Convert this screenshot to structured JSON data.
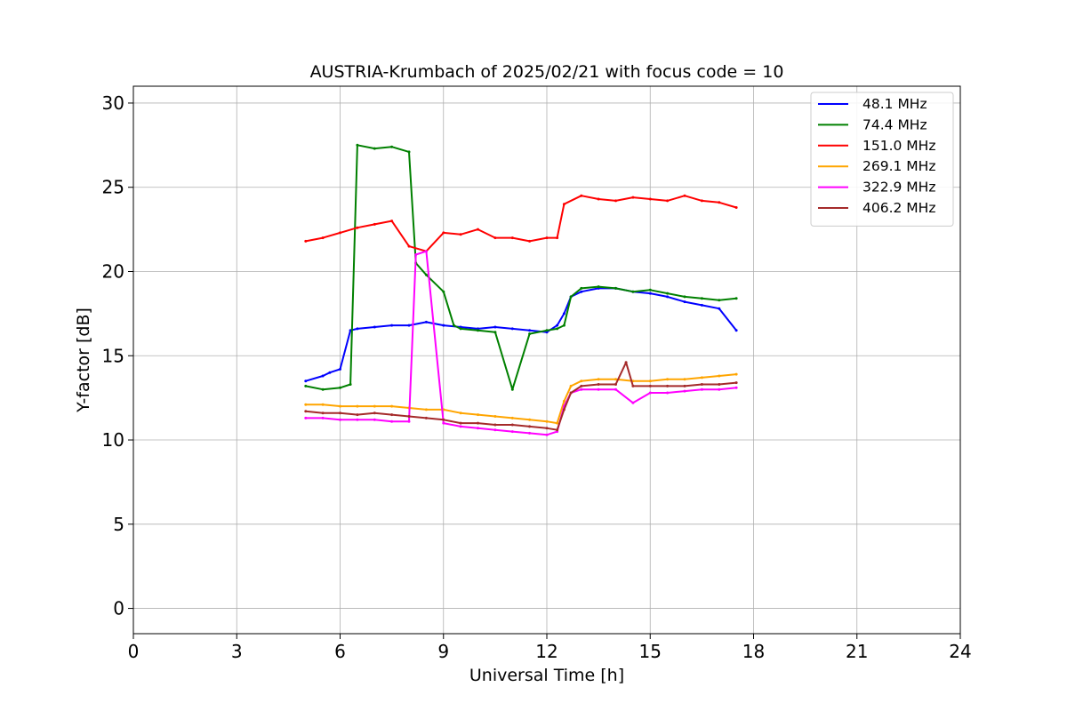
{
  "chart_data": {
    "type": "line",
    "title": "AUSTRIA-Krumbach of 2025/02/21 with focus code = 10",
    "xlabel": "Universal Time [h]",
    "ylabel": "Y-factor [dB]",
    "xlim": [
      0,
      24
    ],
    "ylim": [
      -1.5,
      31
    ],
    "xticks": [
      0,
      3,
      6,
      9,
      12,
      15,
      18,
      21,
      24
    ],
    "yticks": [
      0,
      5,
      10,
      15,
      20,
      25,
      30
    ],
    "grid": true,
    "legend_position": "upper-right",
    "series": [
      {
        "name": " 48.1 MHz",
        "color": "#0000ff",
        "x": [
          5.0,
          5.5,
          5.7,
          6.0,
          6.3,
          6.5,
          7.0,
          7.5,
          8.0,
          8.5,
          9.0,
          9.5,
          10.0,
          10.5,
          11.0,
          11.5,
          12.0,
          12.3,
          12.5,
          12.7,
          13.0,
          13.5,
          14.0,
          14.5,
          15.0,
          15.5,
          16.0,
          16.5,
          17.0,
          17.5
        ],
        "y": [
          13.5,
          13.8,
          14.0,
          14.2,
          16.5,
          16.6,
          16.7,
          16.8,
          16.8,
          17.0,
          16.8,
          16.7,
          16.6,
          16.7,
          16.6,
          16.5,
          16.4,
          16.8,
          17.5,
          18.5,
          18.8,
          19.0,
          19.0,
          18.8,
          18.7,
          18.5,
          18.2,
          18.0,
          17.8,
          16.5
        ]
      },
      {
        "name": " 74.4 MHz",
        "color": "#008000",
        "x": [
          5.0,
          5.5,
          6.0,
          6.3,
          6.5,
          7.0,
          7.5,
          8.0,
          8.2,
          8.5,
          9.0,
          9.3,
          9.5,
          10.0,
          10.5,
          11.0,
          11.5,
          12.0,
          12.3,
          12.5,
          12.7,
          13.0,
          13.5,
          14.0,
          14.5,
          15.0,
          15.5,
          16.0,
          16.5,
          17.0,
          17.5
        ],
        "y": [
          13.2,
          13.0,
          13.1,
          13.3,
          27.5,
          27.3,
          27.4,
          27.1,
          20.5,
          19.8,
          18.8,
          16.8,
          16.6,
          16.5,
          16.4,
          13.0,
          16.3,
          16.5,
          16.6,
          16.8,
          18.5,
          19.0,
          19.1,
          19.0,
          18.8,
          18.9,
          18.7,
          18.5,
          18.4,
          18.3,
          18.4
        ]
      },
      {
        "name": "151.0 MHz",
        "color": "#ff0000",
        "x": [
          5.0,
          5.5,
          6.0,
          6.5,
          7.0,
          7.5,
          8.0,
          8.5,
          9.0,
          9.5,
          10.0,
          10.5,
          11.0,
          11.5,
          12.0,
          12.3,
          12.5,
          13.0,
          13.5,
          14.0,
          14.5,
          15.0,
          15.5,
          16.0,
          16.5,
          17.0,
          17.5
        ],
        "y": [
          21.8,
          22.0,
          22.3,
          22.6,
          22.8,
          23.0,
          21.5,
          21.2,
          22.3,
          22.2,
          22.5,
          22.0,
          22.0,
          21.8,
          22.0,
          22.0,
          24.0,
          24.5,
          24.3,
          24.2,
          24.4,
          24.3,
          24.2,
          24.5,
          24.2,
          24.1,
          23.8
        ]
      },
      {
        "name": "269.1 MHz",
        "color": "#ffa500",
        "x": [
          5.0,
          5.5,
          6.0,
          6.5,
          7.0,
          7.5,
          8.0,
          8.5,
          9.0,
          9.5,
          10.0,
          10.5,
          11.0,
          11.5,
          12.0,
          12.3,
          12.5,
          12.7,
          13.0,
          13.5,
          14.0,
          14.5,
          15.0,
          15.5,
          16.0,
          16.5,
          17.0,
          17.5
        ],
        "y": [
          12.1,
          12.1,
          12.0,
          12.0,
          12.0,
          12.0,
          11.9,
          11.8,
          11.8,
          11.6,
          11.5,
          11.4,
          11.3,
          11.2,
          11.1,
          11.0,
          12.3,
          13.2,
          13.5,
          13.6,
          13.6,
          13.5,
          13.5,
          13.6,
          13.6,
          13.7,
          13.8,
          13.9
        ]
      },
      {
        "name": "322.9 MHz",
        "color": "#ff00ff",
        "x": [
          5.0,
          5.5,
          6.0,
          6.5,
          7.0,
          7.5,
          8.0,
          8.2,
          8.5,
          9.0,
          9.5,
          10.0,
          10.5,
          11.0,
          11.5,
          12.0,
          12.3,
          12.5,
          12.7,
          13.0,
          13.5,
          14.0,
          14.5,
          15.0,
          15.5,
          16.0,
          16.5,
          17.0,
          17.5
        ],
        "y": [
          11.3,
          11.3,
          11.2,
          11.2,
          11.2,
          11.1,
          11.1,
          21.0,
          21.2,
          11.0,
          10.8,
          10.7,
          10.6,
          10.5,
          10.4,
          10.3,
          10.5,
          12.0,
          12.8,
          13.0,
          13.0,
          13.0,
          12.2,
          12.8,
          12.8,
          12.9,
          13.0,
          13.0,
          13.1
        ]
      },
      {
        "name": "406.2 MHz",
        "color": "#a52a2a",
        "x": [
          5.0,
          5.5,
          6.0,
          6.5,
          7.0,
          7.5,
          8.0,
          8.5,
          9.0,
          9.5,
          10.0,
          10.5,
          11.0,
          11.5,
          12.0,
          12.3,
          12.5,
          12.7,
          13.0,
          13.5,
          14.0,
          14.3,
          14.5,
          15.0,
          15.5,
          16.0,
          16.5,
          17.0,
          17.5
        ],
        "y": [
          11.7,
          11.6,
          11.6,
          11.5,
          11.6,
          11.5,
          11.4,
          11.3,
          11.2,
          11.0,
          11.0,
          10.9,
          10.9,
          10.8,
          10.7,
          10.6,
          11.8,
          12.8,
          13.2,
          13.3,
          13.3,
          14.6,
          13.2,
          13.2,
          13.2,
          13.2,
          13.3,
          13.3,
          13.4
        ]
      }
    ]
  }
}
